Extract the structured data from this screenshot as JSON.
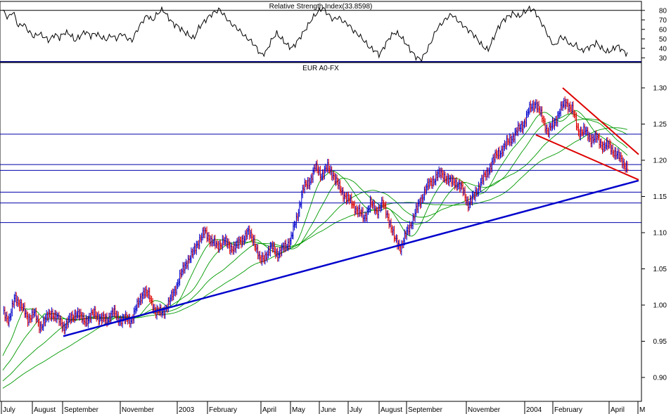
{
  "chart_data": [
    {
      "type": "line",
      "title": "Relative Strength Index(33.8598)",
      "ylim": [
        25,
        88
      ],
      "yticks": [
        30,
        40,
        50,
        60,
        70,
        80
      ],
      "reference_levels": [
        80
      ],
      "series": [
        {
          "values": [
            80,
            72,
            79,
            63,
            66,
            58,
            52,
            56,
            52,
            48,
            55,
            51,
            57,
            55,
            48,
            53,
            58,
            53,
            56,
            52,
            49,
            54,
            50,
            56,
            51,
            48,
            59,
            68,
            75,
            69,
            77,
            81,
            73,
            66,
            63,
            58,
            54,
            50,
            62,
            68,
            74,
            78,
            81,
            74,
            67,
            63,
            58,
            52,
            48,
            42,
            33,
            36,
            48,
            56,
            50,
            44,
            40,
            47,
            55,
            63,
            72,
            78,
            83,
            76,
            70,
            73,
            68,
            65,
            58,
            54,
            48,
            41,
            38,
            33,
            43,
            52,
            57,
            53,
            46,
            38,
            31,
            28,
            36,
            47,
            60,
            66,
            72,
            76,
            70,
            65,
            60,
            56,
            49,
            42,
            38,
            50,
            62,
            70,
            74,
            77,
            73,
            78,
            82,
            80,
            70,
            61,
            49,
            42,
            52,
            50,
            43,
            44,
            37,
            40,
            42,
            46,
            40,
            36,
            38,
            43,
            38,
            34
          ]
        }
      ]
    },
    {
      "type": "line",
      "title": "EUR A0-FX",
      "ylim": [
        0.86,
        1.33
      ],
      "yticks": [
        "0.90",
        "0.95",
        "1.00",
        "1.05",
        "1.10",
        "1.15",
        "1.20",
        "1.25",
        "1.30"
      ],
      "x_tick_labels": [
        "July",
        "August",
        "September",
        "November",
        "2003",
        "February",
        "April",
        "May",
        "June",
        "July",
        "August",
        "September",
        "November",
        "2004",
        "February",
        "April",
        "M"
      ],
      "price": {
        "values": [
          0.99,
          0.98,
          1.01,
          1.0,
          0.98,
          0.99,
          0.97,
          0.98,
          0.99,
          0.98,
          0.97,
          0.98,
          0.99,
          0.98,
          0.98,
          0.99,
          0.98,
          0.98,
          0.99,
          0.98,
          0.98,
          0.98,
          1.0,
          1.02,
          1.01,
          0.99,
          0.99,
          1.0,
          1.02,
          1.04,
          1.06,
          1.07,
          1.09,
          1.1,
          1.09,
          1.08,
          1.09,
          1.08,
          1.08,
          1.09,
          1.1,
          1.09,
          1.06,
          1.07,
          1.08,
          1.07,
          1.08,
          1.09,
          1.12,
          1.16,
          1.17,
          1.19,
          1.18,
          1.19,
          1.18,
          1.16,
          1.15,
          1.14,
          1.13,
          1.12,
          1.14,
          1.13,
          1.14,
          1.12,
          1.09,
          1.08,
          1.1,
          1.12,
          1.14,
          1.16,
          1.17,
          1.18,
          1.18,
          1.17,
          1.17,
          1.16,
          1.14,
          1.15,
          1.17,
          1.18,
          1.2,
          1.21,
          1.22,
          1.23,
          1.24,
          1.25,
          1.27,
          1.28,
          1.26,
          1.24,
          1.25,
          1.27,
          1.28,
          1.27,
          1.24,
          1.24,
          1.23,
          1.23,
          1.22,
          1.22,
          1.21,
          1.2,
          1.19
        ]
      },
      "moving_averages": 4,
      "horizontal_lines": [
        1.236,
        1.194,
        1.186,
        1.156,
        1.141,
        1.114
      ],
      "trendlines": [
        {
          "color": "#0000cc",
          "from": {
            "x": "September 2002",
            "y": 0.957
          },
          "to": {
            "x": "May 2004",
            "y": 1.172
          }
        },
        {
          "color": "#dd0000",
          "from": {
            "x": "February 2004",
            "y": 1.3
          },
          "to": {
            "x": "May 2004",
            "y": 1.208
          }
        },
        {
          "color": "#dd0000",
          "from": {
            "x": "January 2004",
            "y": 1.235
          },
          "to": {
            "x": "May 2004",
            "y": 1.173
          }
        }
      ]
    }
  ],
  "colors": {
    "rsi_line": "#000000",
    "price_bar_up": "#0000cc",
    "price_bar_down": "#dd0000",
    "moving_average": "#009900",
    "horizontal_line": "#0000aa",
    "uptrend": "#0000cc",
    "wedge": "#dd0000"
  }
}
